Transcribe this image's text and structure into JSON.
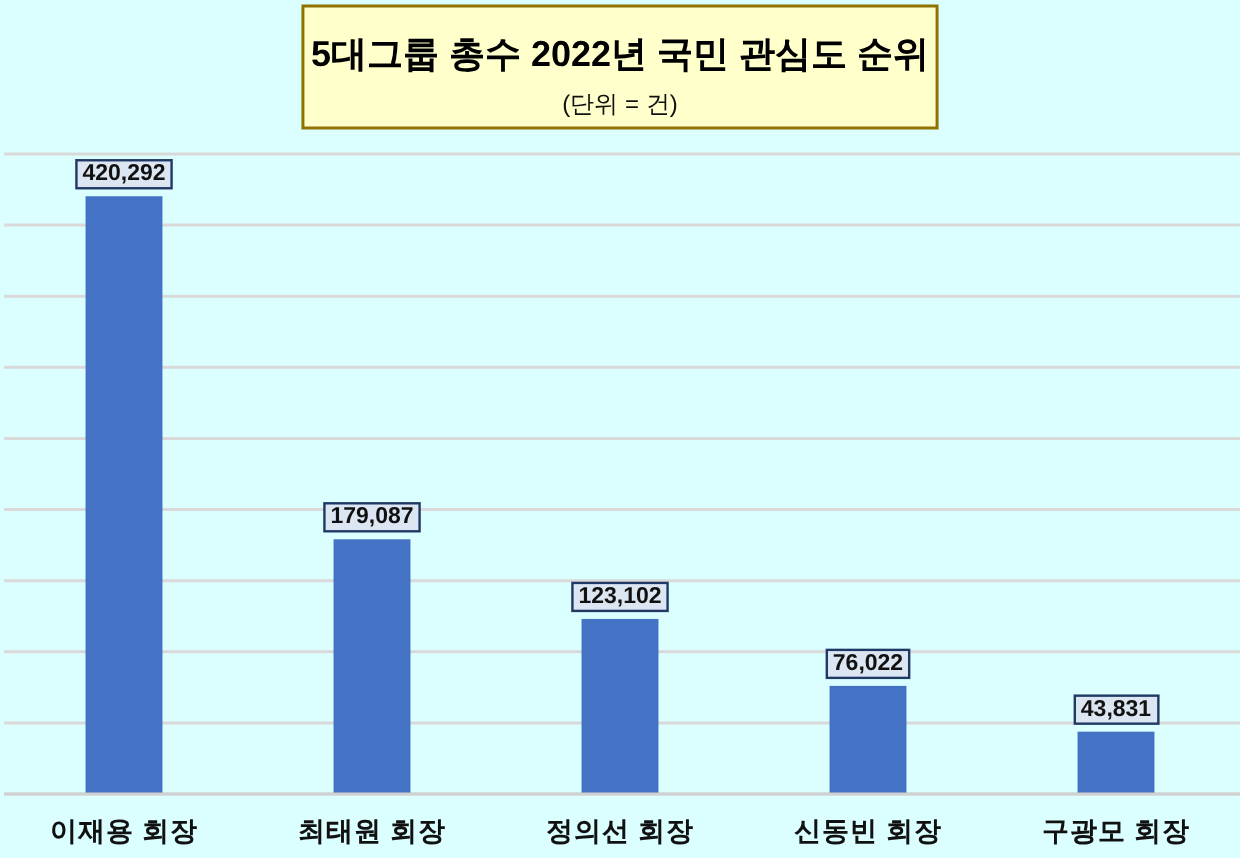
{
  "chart_data": {
    "type": "bar",
    "title": "5대그룹 총수 2022년 국민 관심도 순위",
    "subtitle": "(단위 = 건)",
    "categories": [
      "이재용 회장",
      "최태원 회장",
      "정의선 회장",
      "신동빈 회장",
      "구광모 회장"
    ],
    "values": [
      420292,
      179087,
      123102,
      76022,
      43831
    ],
    "color": "#4472c4",
    "value_labels": [
      "420,292",
      "179,087",
      "123,102",
      "76,022",
      "43,831"
    ],
    "grid": "y",
    "tick_labels": "x"
  }
}
